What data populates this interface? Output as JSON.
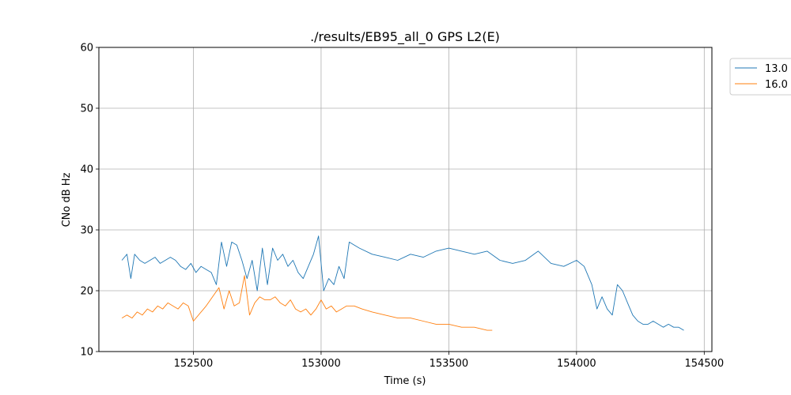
{
  "chart_data": {
    "type": "line",
    "title": "./results/EB95_all_0 GPS L2(E)",
    "xlabel": "Time (s)",
    "ylabel": "CNo dB Hz",
    "xlim": [
      152130,
      154530
    ],
    "ylim": [
      10,
      60
    ],
    "xticks": [
      152500,
      153000,
      153500,
      154000,
      154500
    ],
    "yticks": [
      10,
      20,
      30,
      40,
      50,
      60
    ],
    "grid": true,
    "legend_position": "upper-right-outside",
    "series": [
      {
        "name": "13.0",
        "color": "#1f77b4",
        "x": [
          152220,
          152240,
          152255,
          152270,
          152290,
          152310,
          152330,
          152350,
          152370,
          152390,
          152410,
          152430,
          152450,
          152470,
          152490,
          152510,
          152530,
          152550,
          152570,
          152590,
          152610,
          152630,
          152650,
          152670,
          152690,
          152710,
          152730,
          152750,
          152770,
          152790,
          152810,
          152830,
          152850,
          152870,
          152890,
          152910,
          152930,
          152950,
          152970,
          152990,
          153010,
          153030,
          153050,
          153070,
          153090,
          153110,
          153130,
          153150,
          153200,
          153250,
          153300,
          153350,
          153400,
          153450,
          153500,
          153550,
          153600,
          153650,
          153700,
          153750,
          153800,
          153850,
          153900,
          153950,
          154000,
          154030,
          154060,
          154080,
          154100,
          154120,
          154140,
          154160,
          154180,
          154200,
          154220,
          154240,
          154260,
          154280,
          154300,
          154320,
          154340,
          154360,
          154380,
          154400,
          154420
        ],
        "y": [
          25,
          26,
          22,
          26,
          25,
          24.5,
          25,
          25.5,
          24.5,
          25,
          25.5,
          25,
          24,
          23.5,
          24.5,
          23,
          24,
          23.5,
          23,
          21,
          28,
          24,
          28,
          27.5,
          25,
          22,
          25,
          20,
          27,
          21,
          27,
          25,
          26,
          24,
          25,
          23,
          22,
          24,
          26,
          29,
          20,
          22,
          21,
          24,
          22,
          28,
          27.5,
          27,
          26,
          25.5,
          25,
          26,
          25.5,
          26.5,
          27,
          26.5,
          26,
          26.5,
          25,
          24.5,
          25,
          26.5,
          24.5,
          24,
          25,
          24,
          21,
          17,
          19,
          17,
          16,
          21,
          20,
          18,
          16,
          15,
          14.5,
          14.5,
          15,
          14.5,
          14,
          14.5,
          14,
          14,
          13.5
        ]
      },
      {
        "name": "16.0",
        "color": "#ff7f0e",
        "x": [
          152220,
          152240,
          152260,
          152280,
          152300,
          152320,
          152340,
          152360,
          152380,
          152400,
          152420,
          152440,
          152460,
          152480,
          152500,
          152550,
          152600,
          152620,
          152640,
          152660,
          152680,
          152700,
          152720,
          152740,
          152760,
          152780,
          152800,
          152820,
          152840,
          152860,
          152880,
          152900,
          152920,
          152940,
          152960,
          152980,
          153000,
          153020,
          153040,
          153060,
          153080,
          153100,
          153130,
          153160,
          153200,
          153250,
          153300,
          153350,
          153400,
          153450,
          153500,
          153550,
          153600,
          153650,
          153670
        ],
        "y": [
          15.5,
          16,
          15.5,
          16.5,
          16,
          17,
          16.5,
          17.5,
          17,
          18,
          17.5,
          17,
          18,
          17.5,
          15,
          17.5,
          20.5,
          17,
          20,
          17.5,
          18,
          22.5,
          16,
          18,
          19,
          18.5,
          18.5,
          19,
          18,
          17.5,
          18.5,
          17,
          16.5,
          17,
          16,
          17,
          18.5,
          17,
          17.5,
          16.5,
          17,
          17.5,
          17.5,
          17,
          16.5,
          16,
          15.5,
          15.5,
          15,
          14.5,
          14.5,
          14,
          14,
          13.5,
          13.5
        ]
      }
    ]
  }
}
